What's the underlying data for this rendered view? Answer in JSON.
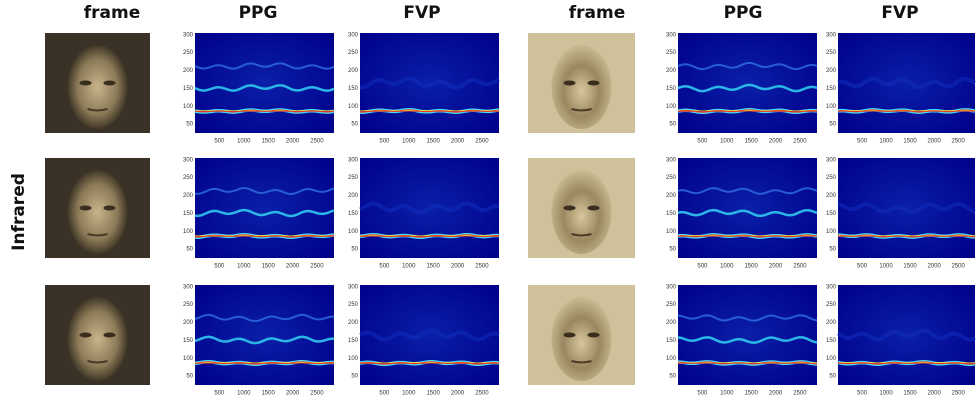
{
  "headers": [
    "frame",
    "PPG",
    "FVP",
    "frame",
    "PPG",
    "FVP"
  ],
  "row_label": "Infrared",
  "spectrogram_axes": {
    "ylim": [
      25,
      305
    ],
    "yticks": [
      50,
      100,
      150,
      200,
      250,
      300
    ],
    "xlim": [
      0,
      2850
    ],
    "xticks": [
      500,
      1000,
      1500,
      2000,
      2500
    ]
  }
}
